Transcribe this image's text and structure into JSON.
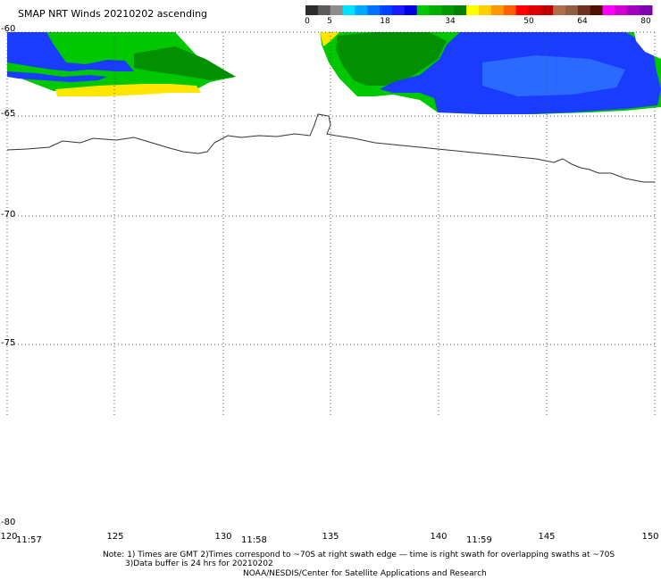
{
  "title": "SMAP NRT Winds 20210202 ascending",
  "colorbar": {
    "ticks": [
      "0",
      "5",
      "18",
      "34",
      "50",
      "64",
      "80"
    ],
    "segments": [
      {
        "color": "#2b2b2b"
      },
      {
        "color": "#5a5a5a"
      },
      {
        "color": "#8c8c8c"
      },
      {
        "color": "#00e0ff"
      },
      {
        "color": "#00a8ff"
      },
      {
        "color": "#0070ff"
      },
      {
        "color": "#0040ff"
      },
      {
        "color": "#1a1aff"
      },
      {
        "color": "#0000e0"
      },
      {
        "color": "#00c800"
      },
      {
        "color": "#00b000"
      },
      {
        "color": "#009800"
      },
      {
        "color": "#008000"
      },
      {
        "color": "#ffff00"
      },
      {
        "color": "#ffd000"
      },
      {
        "color": "#ff9800"
      },
      {
        "color": "#ff6000"
      },
      {
        "color": "#ff0000"
      },
      {
        "color": "#e00000"
      },
      {
        "color": "#c00000"
      },
      {
        "color": "#b07050"
      },
      {
        "color": "#906040"
      },
      {
        "color": "#703020"
      },
      {
        "color": "#501000"
      },
      {
        "color": "#ff00ff"
      },
      {
        "color": "#d000d0"
      },
      {
        "color": "#a000c0"
      },
      {
        "color": "#8000b0"
      }
    ]
  },
  "lat_labels": [
    "-60",
    "-65",
    "-70",
    "-75",
    "-80"
  ],
  "lon_labels": [
    "120",
    "125",
    "130",
    "135",
    "140",
    "145",
    "150"
  ],
  "time_labels": [
    "11:57",
    "11:58",
    "11:59"
  ],
  "notes": {
    "line1": "Note: 1) Times are GMT 2)Times correspond to ~70S at right swath edge — time is right swath for overlapping swaths at ~70S",
    "line2": "3)Data buffer is 24 hrs for 20210202",
    "line3": "NOAA/NESDIS/Center for Satellite Applications and Research"
  },
  "wind_colors": {
    "green": "#00c800",
    "dark_green": "#009000",
    "blue": "#1a3cff",
    "light_blue": "#2a6aff",
    "yellow": "#ffe600"
  }
}
